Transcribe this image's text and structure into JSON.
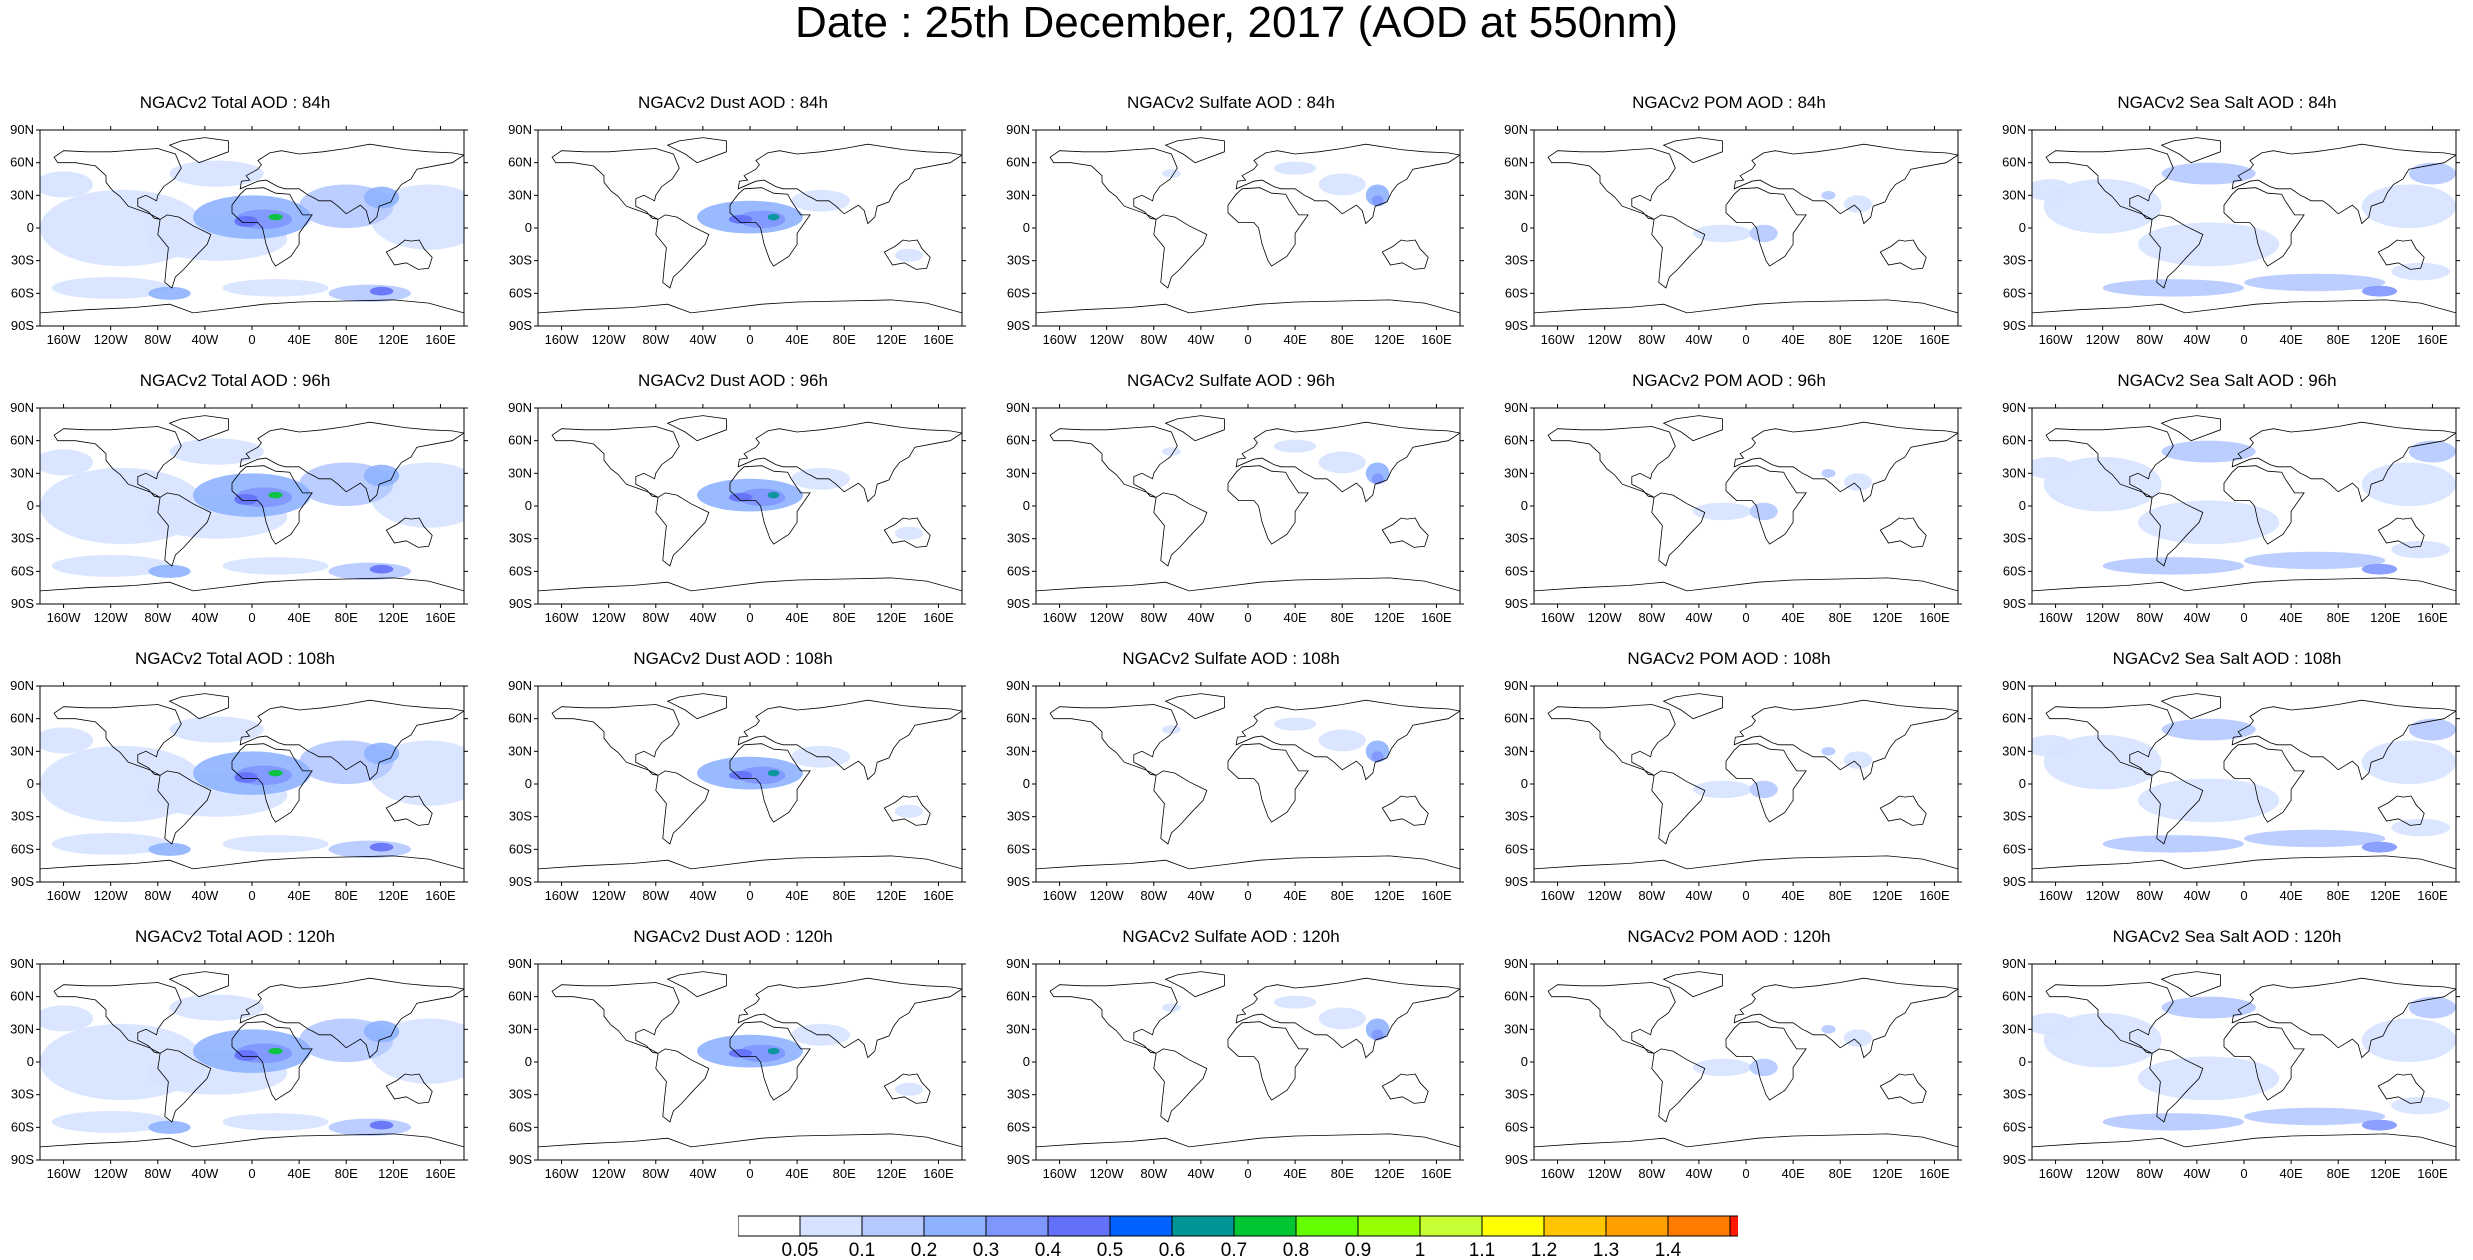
{
  "title": "Date : 25th December, 2017 (AOD at 550nm)",
  "axes": {
    "lat_labels": [
      "90N",
      "60N",
      "30N",
      "0",
      "30S",
      "60S",
      "90S"
    ],
    "lat_values": [
      90,
      60,
      30,
      0,
      -30,
      -60,
      -90
    ],
    "lon_labels": [
      "160W",
      "120W",
      "80W",
      "40W",
      "0",
      "40E",
      "80E",
      "120E",
      "160E"
    ],
    "lon_values": [
      -160,
      -120,
      -80,
      -40,
      0,
      40,
      80,
      120,
      160
    ]
  },
  "panels": [
    {
      "title": "NGACv2 Total AOD : 84h",
      "species": "total",
      "hour": "84h"
    },
    {
      "title": "NGACv2 Dust AOD : 84h",
      "species": "dust",
      "hour": "84h"
    },
    {
      "title": "NGACv2 Sulfate AOD : 84h",
      "species": "sulfate",
      "hour": "84h"
    },
    {
      "title": "NGACv2 POM AOD : 84h",
      "species": "pom",
      "hour": "84h"
    },
    {
      "title": "NGACv2 Sea Salt AOD : 84h",
      "species": "seasalt",
      "hour": "84h"
    },
    {
      "title": "NGACv2 Total AOD : 96h",
      "species": "total",
      "hour": "96h"
    },
    {
      "title": "NGACv2 Dust AOD : 96h",
      "species": "dust",
      "hour": "96h"
    },
    {
      "title": "NGACv2 Sulfate AOD : 96h",
      "species": "sulfate",
      "hour": "96h"
    },
    {
      "title": "NGACv2 POM AOD : 96h",
      "species": "pom",
      "hour": "96h"
    },
    {
      "title": "NGACv2 Sea Salt AOD : 96h",
      "species": "seasalt",
      "hour": "96h"
    },
    {
      "title": "NGACv2 Total AOD : 108h",
      "species": "total",
      "hour": "108h"
    },
    {
      "title": "NGACv2 Dust AOD : 108h",
      "species": "dust",
      "hour": "108h"
    },
    {
      "title": "NGACv2 Sulfate AOD : 108h",
      "species": "sulfate",
      "hour": "108h"
    },
    {
      "title": "NGACv2 POM AOD : 108h",
      "species": "pom",
      "hour": "108h"
    },
    {
      "title": "NGACv2 Sea Salt AOD : 108h",
      "species": "seasalt",
      "hour": "108h"
    },
    {
      "title": "NGACv2 Total AOD : 120h",
      "species": "total",
      "hour": "120h"
    },
    {
      "title": "NGACv2 Dust AOD : 120h",
      "species": "dust",
      "hour": "120h"
    },
    {
      "title": "NGACv2 Sulfate AOD : 120h",
      "species": "sulfate",
      "hour": "120h"
    },
    {
      "title": "NGACv2 POM AOD : 120h",
      "species": "pom",
      "hour": "120h"
    },
    {
      "title": "NGACv2 Sea Salt  AOD : 120h",
      "species": "seasalt",
      "hour": "120h"
    }
  ],
  "colorbar": {
    "labels": [
      "0.05",
      "0.1",
      "0.2",
      "0.3",
      "0.4",
      "0.5",
      "0.6",
      "0.7",
      "0.8",
      "0.9",
      "1",
      "1.1",
      "1.2",
      "1.3",
      "1.4"
    ],
    "colors": [
      "#ffffff",
      "#d6e2ff",
      "#b5c9ff",
      "#8eb2ff",
      "#7f96ff",
      "#6370f8",
      "#0063ff",
      "#009696",
      "#00c633",
      "#63ff00",
      "#96ff00",
      "#c6ff33",
      "#ffff00",
      "#ffc600",
      "#ffa000",
      "#ff7c00",
      "#ff1900"
    ]
  }
}
